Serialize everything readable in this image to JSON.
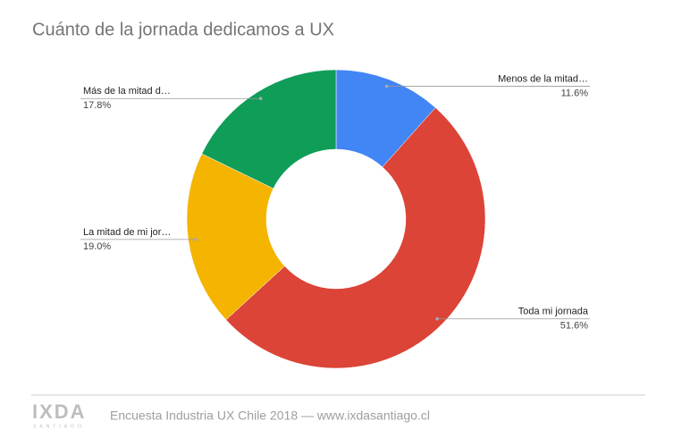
{
  "chart_data": {
    "type": "donut",
    "title": "Cuánto de la jornada dedicamos a UX",
    "categories": [
      "Menos de la mitad…",
      "Toda mi jornada",
      "La mitad de mi jor…",
      "Más de la mitad d…"
    ],
    "values": [
      11.6,
      51.6,
      19.0,
      17.8
    ],
    "value_labels": [
      "11.6%",
      "51.6%",
      "19.0%",
      "17.8%"
    ],
    "colors": [
      "#4285f4",
      "#db4437",
      "#f4b400",
      "#0f9d58"
    ]
  },
  "footer": {
    "logo": "IXDA",
    "logo_sub": "SANTIAGO",
    "text": "Encuesta Industria UX Chile 2018 — www.ixdasantiago.cl"
  }
}
